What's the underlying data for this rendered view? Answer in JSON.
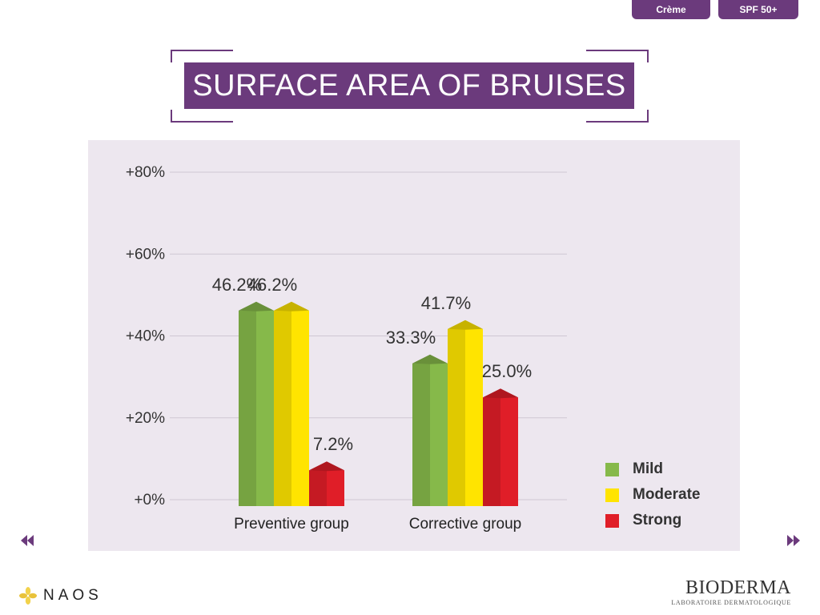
{
  "tabs": [
    {
      "label": "Crème"
    },
    {
      "label": "SPF 50+"
    }
  ],
  "title": "SURFACE AREA OF BRUISES",
  "colors": {
    "brand_purple": "#6b3a7c",
    "panel_bg": "#ede7ef",
    "mild": "#86b94a",
    "moderate": "#ffe400",
    "strong": "#e01e28"
  },
  "chart_data": {
    "type": "bar",
    "categories": [
      "Preventive group",
      "Corrective group"
    ],
    "series": [
      {
        "name": "Mild",
        "values": [
          46.2,
          33.3
        ],
        "labels": [
          "46.2%",
          "33.3%"
        ]
      },
      {
        "name": "Moderate",
        "values": [
          46.2,
          41.7
        ],
        "labels": [
          "46.2%",
          "41.7%"
        ]
      },
      {
        "name": "Strong",
        "values": [
          7.2,
          25.0
        ],
        "labels": [
          "7.2%",
          "25.0%"
        ]
      }
    ],
    "yticks": [
      "+0%",
      "+20%",
      "+40%",
      "+60%",
      "+80%"
    ],
    "ylim": [
      0,
      80
    ],
    "grid": true,
    "legend_position": "bottom-right",
    "style": "3d-bars"
  },
  "legend": [
    {
      "label": "Mild"
    },
    {
      "label": "Moderate"
    },
    {
      "label": "Strong"
    }
  ],
  "navigation": {
    "prev_icon": "double-chevron-left-icon",
    "next_icon": "double-chevron-right-icon"
  },
  "footer": {
    "naos_logo_text": "NAOS",
    "bioderma_name": "BIODERMA",
    "bioderma_tagline": "LABORATOIRE DERMATOLOGIQUE"
  }
}
